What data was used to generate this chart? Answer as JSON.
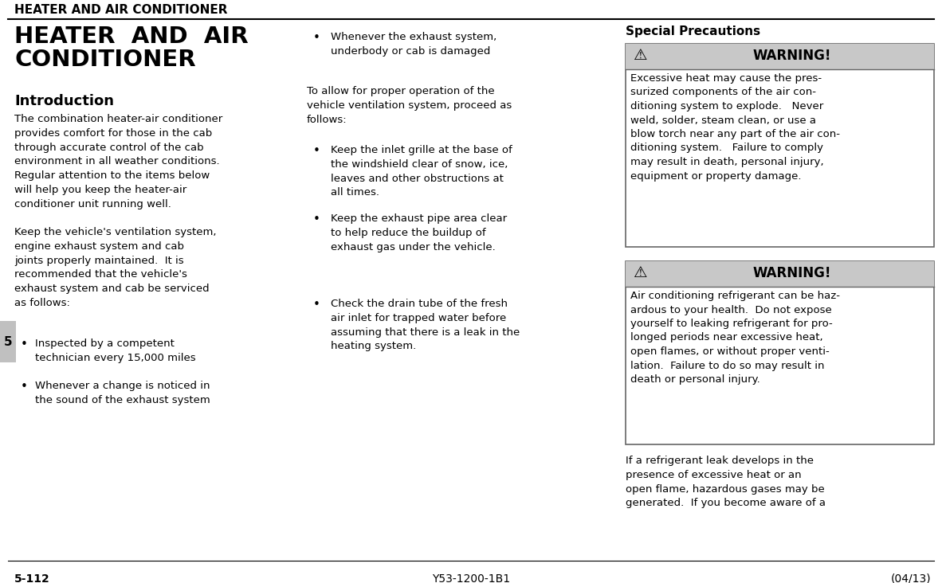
{
  "bg_color": "#ffffff",
  "header_text": "HEATER AND AIR CONDITIONER",
  "col1_title": "HEATER  AND  AIR\nCONDITIONER",
  "col1_subtitle": "Introduction",
  "col1_body1": "The combination heater-air conditioner\nprovides comfort for those in the cab\nthrough accurate control of the cab\nenvironment in all weather conditions.\nRegular attention to the items below\nwill help you keep the heater-air\nconditioner unit running well.",
  "col1_body2": "Keep the vehicle's ventilation system,\nengine exhaust system and cab\njoints properly maintained.  It is\nrecommended that the vehicle's\nexhaust system and cab be serviced\nas follows:",
  "col1_bullet1": "Inspected by a competent\ntechnician every 15,000 miles",
  "col1_bullet2": "Whenever a change is noticed in\nthe sound of the exhaust system",
  "col2_bullet0": "Whenever the exhaust system,\nunderbody or cab is damaged",
  "col2_intro": "To allow for proper operation of the\nvehicle ventilation system, proceed as\nfollows:",
  "col2_bullet1": "Keep the inlet grille at the base of\nthe windshield clear of snow, ice,\nleaves and other obstructions at\nall times.",
  "col2_bullet2": "Keep the exhaust pipe area clear\nto help reduce the buildup of\nexhaust gas under the vehicle.",
  "col2_bullet3": "Check the drain tube of the fresh\nair inlet for trapped water before\nassuming that there is a leak in the\nheating system.",
  "col3_title": "Special Precautions",
  "warn1_header": "WARNING!",
  "warn1_body": "Excessive heat may cause the pres-\nsurized components of the air con-\nditioning system to explode.   Never\nweld, solder, steam clean, or use a\nblow torch near any part of the air con-\nditioning system.   Failure to comply\nmay result in death, personal injury,\nequipment or property damage.",
  "warn2_header": "WARNING!",
  "warn2_body": "Air conditioning refrigerant can be haz-\nardous to your health.  Do not expose\nyourself to leaking refrigerant for pro-\nlonged periods near excessive heat,\nopen flames, or without proper venti-\nlation.  Failure to do so may result in\ndeath or personal injury.",
  "col3_body_end": "If a refrigerant leak develops in the\npresence of excessive heat or an\nopen flame, hazardous gases may be\ngenerated.  If you become aware of a",
  "footer_left": "5-112",
  "footer_center": "Y53-1200-1B1",
  "footer_right": "(04/13)",
  "page_num": "5",
  "warn_bg": "#c8c8c8",
  "warn_border": "#666666",
  "box_border": "#666666",
  "sidebar_bg": "#c0c0c0"
}
